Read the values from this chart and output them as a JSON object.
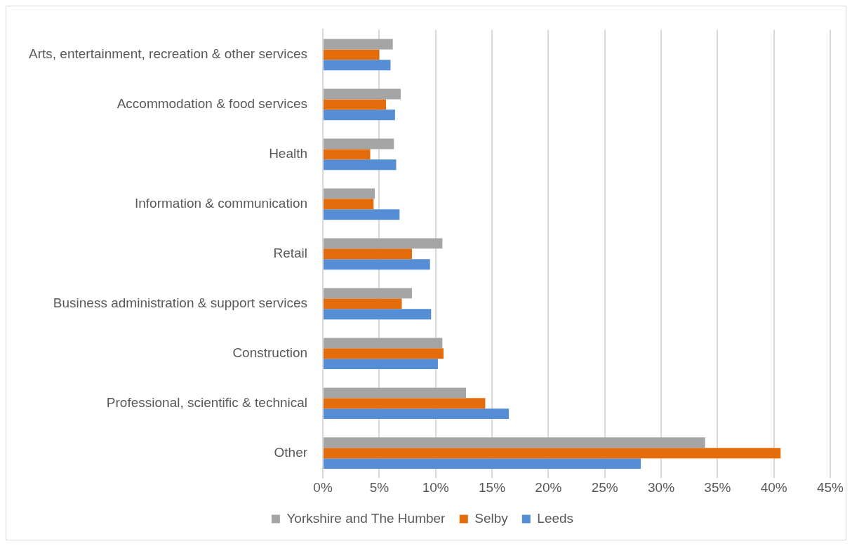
{
  "chart_data": {
    "type": "bar",
    "orientation": "horizontal",
    "categories": [
      "Arts, entertainment, recreation & other services",
      "Accommodation & food services",
      "Health",
      "Information & communication",
      "Retail",
      "Business administration & support services",
      "Construction",
      "Professional, scientific & technical",
      "Other"
    ],
    "series": [
      {
        "name": "Yorkshire and The Humber",
        "color": "#a5a5a5",
        "values": [
          6.2,
          6.9,
          6.3,
          4.6,
          10.6,
          7.9,
          10.6,
          12.7,
          33.9
        ]
      },
      {
        "name": "Selby",
        "color": "#e46c0a",
        "values": [
          5.0,
          5.6,
          4.2,
          4.5,
          7.9,
          7.0,
          10.7,
          14.4,
          40.6
        ]
      },
      {
        "name": "Leeds",
        "color": "#558ed5",
        "values": [
          6.0,
          6.4,
          6.5,
          6.8,
          9.5,
          9.6,
          10.2,
          16.5,
          28.2
        ]
      }
    ],
    "xlim": [
      0,
      45
    ],
    "xticks": [
      {
        "value": 0,
        "label": "0%"
      },
      {
        "value": 5,
        "label": "5%"
      },
      {
        "value": 10,
        "label": "10%"
      },
      {
        "value": 15,
        "label": "15%"
      },
      {
        "value": 20,
        "label": "20%"
      },
      {
        "value": 25,
        "label": "25%"
      },
      {
        "value": 30,
        "label": "30%"
      },
      {
        "value": 35,
        "label": "35%"
      },
      {
        "value": 40,
        "label": "40%"
      },
      {
        "value": 45,
        "label": "45%"
      }
    ],
    "grid": "x",
    "legend": "bottom"
  }
}
